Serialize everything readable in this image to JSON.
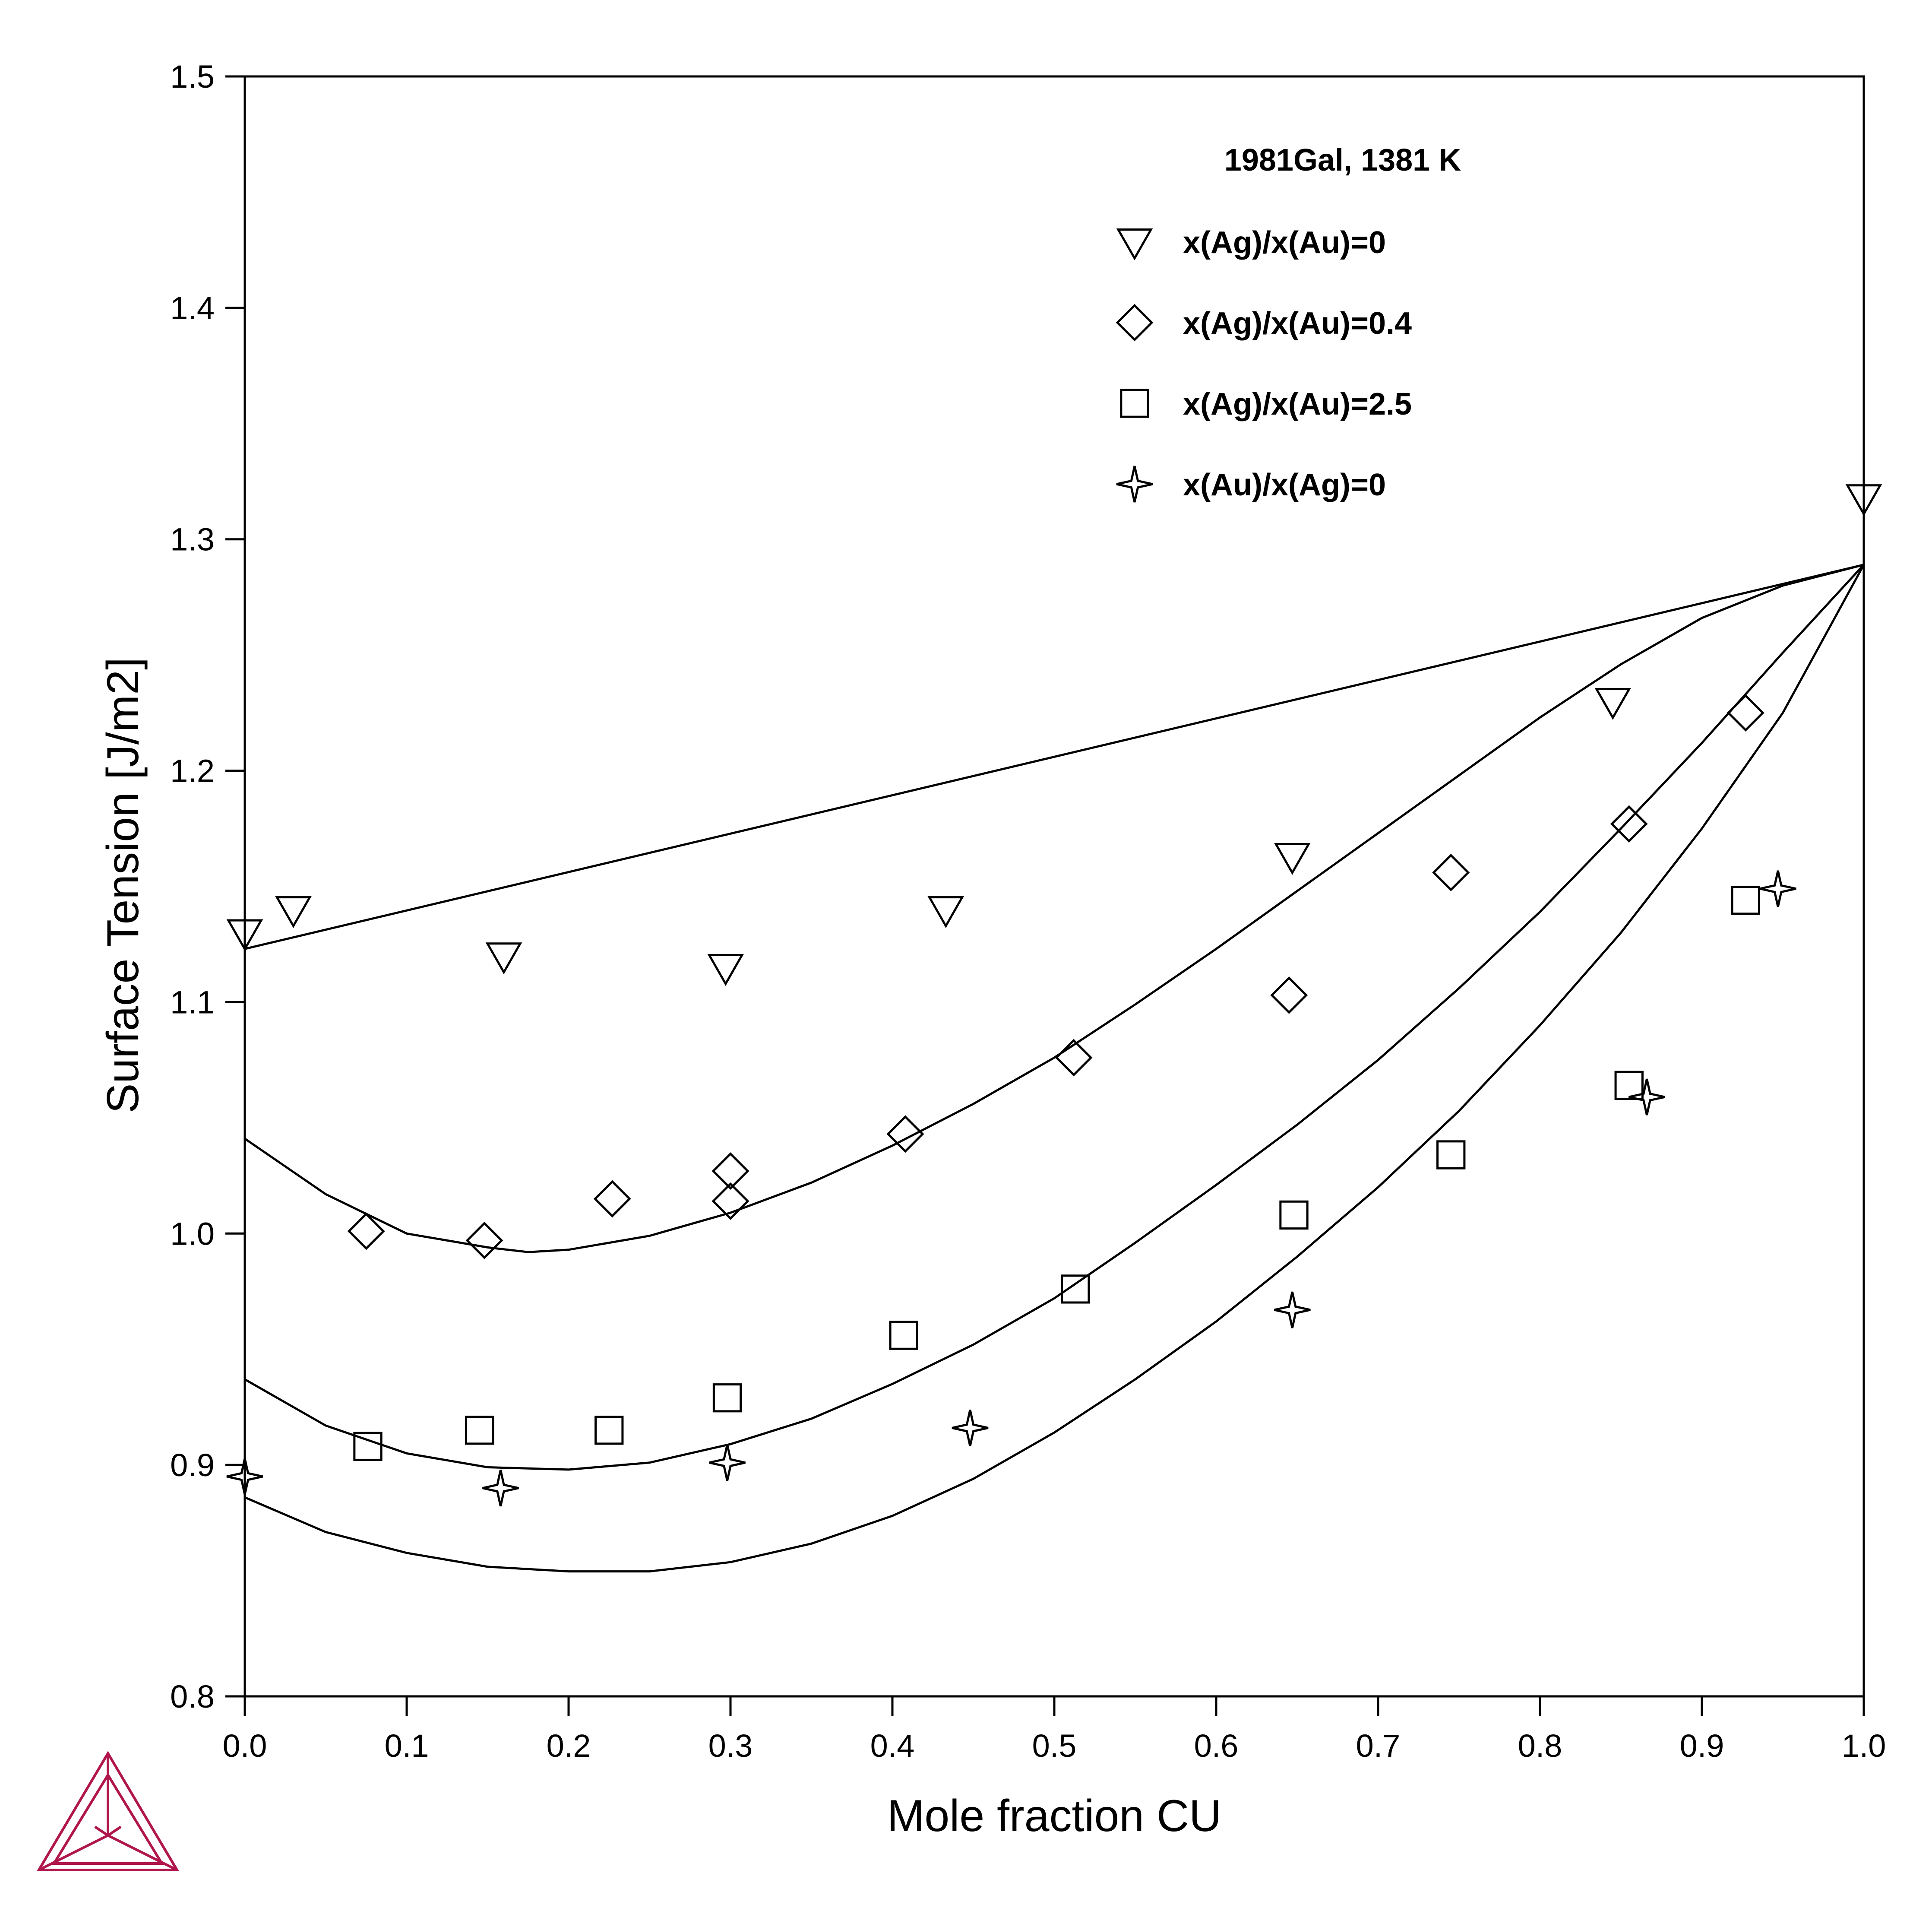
{
  "colors": {
    "logo": "#b0164b",
    "ink": "#000000",
    "background": "#ffffff"
  },
  "logo_icon": "thermo-calc-triangle-logo",
  "chart_data": {
    "type": "scatter",
    "xlabel": "Mole fraction CU",
    "ylabel": "Surface Tension [J/m2]",
    "xlim": [
      0.0,
      1.0
    ],
    "ylim": [
      0.8,
      1.5
    ],
    "xticks": [
      "0.0",
      "0.1",
      "0.2",
      "0.3",
      "0.4",
      "0.5",
      "0.6",
      "0.7",
      "0.8",
      "0.9",
      "1.0"
    ],
    "yticks": [
      "0.8",
      "0.9",
      "1.0",
      "1.1",
      "1.2",
      "1.3",
      "1.4",
      "1.5"
    ],
    "grid": false,
    "legend_position": "top-right",
    "legend_title": "1981Gal, 1381 K",
    "series": [
      {
        "name": "x(Ag)/x(Au)=0",
        "marker": "triangle-down",
        "points": [
          [
            0.0,
            1.13
          ],
          [
            0.03,
            1.14
          ],
          [
            0.16,
            1.12
          ],
          [
            0.297,
            1.115
          ],
          [
            0.433,
            1.14
          ],
          [
            0.647,
            1.163
          ],
          [
            0.845,
            1.23
          ],
          [
            1.0,
            1.318
          ]
        ]
      },
      {
        "name": "x(Ag)/x(Au)=0.4",
        "marker": "diamond",
        "points": [
          [
            0.075,
            1.001
          ],
          [
            0.148,
            0.997
          ],
          [
            0.227,
            1.015
          ],
          [
            0.3,
            1.014
          ],
          [
            0.3,
            1.027
          ],
          [
            0.408,
            1.043
          ],
          [
            0.512,
            1.076
          ],
          [
            0.645,
            1.103
          ],
          [
            0.745,
            1.156
          ],
          [
            0.855,
            1.177
          ],
          [
            0.927,
            1.225
          ]
        ]
      },
      {
        "name": "x(Ag)/x(Au)=2.5",
        "marker": "square",
        "points": [
          [
            0.076,
            0.908
          ],
          [
            0.145,
            0.915
          ],
          [
            0.225,
            0.915
          ],
          [
            0.298,
            0.929
          ],
          [
            0.407,
            0.956
          ],
          [
            0.513,
            0.976
          ],
          [
            0.648,
            1.008
          ],
          [
            0.745,
            1.034
          ],
          [
            0.855,
            1.064
          ],
          [
            0.927,
            1.144
          ]
        ]
      },
      {
        "name": "x(Au)/x(Ag)=0",
        "marker": "star4",
        "points": [
          [
            0.0,
            0.895
          ],
          [
            0.158,
            0.89
          ],
          [
            0.298,
            0.901
          ],
          [
            0.448,
            0.916
          ],
          [
            0.647,
            0.967
          ],
          [
            0.866,
            1.059
          ],
          [
            0.947,
            1.149
          ]
        ]
      }
    ],
    "lines": [
      {
        "x": [
          0.0,
          1.0
        ],
        "y": [
          1.123,
          1.289
        ]
      },
      {
        "x": [
          0.0,
          0.05,
          0.1,
          0.15,
          0.175,
          0.2,
          0.25,
          0.3,
          0.35,
          0.4,
          0.45,
          0.5,
          0.55,
          0.6,
          0.65,
          0.7,
          0.75,
          0.8,
          0.85,
          0.9,
          0.95,
          1.0
        ],
        "y": [
          1.041,
          1.017,
          1.0,
          0.994,
          0.992,
          0.993,
          0.999,
          1.009,
          1.022,
          1.038,
          1.056,
          1.076,
          1.099,
          1.123,
          1.148,
          1.173,
          1.198,
          1.223,
          1.246,
          1.266,
          1.28,
          1.289
        ]
      },
      {
        "x": [
          0.0,
          0.05,
          0.1,
          0.15,
          0.2,
          0.25,
          0.3,
          0.35,
          0.4,
          0.45,
          0.5,
          0.55,
          0.6,
          0.65,
          0.7,
          0.75,
          0.8,
          0.85,
          0.9,
          0.95,
          1.0
        ],
        "y": [
          0.937,
          0.917,
          0.905,
          0.899,
          0.898,
          0.901,
          0.909,
          0.92,
          0.935,
          0.952,
          0.972,
          0.996,
          1.021,
          1.047,
          1.075,
          1.106,
          1.139,
          1.175,
          1.212,
          1.251,
          1.289
        ]
      },
      {
        "x": [
          0.0,
          0.05,
          0.1,
          0.15,
          0.2,
          0.25,
          0.3,
          0.35,
          0.4,
          0.45,
          0.5,
          0.55,
          0.6,
          0.65,
          0.7,
          0.75,
          0.8,
          0.85,
          0.9,
          0.95,
          1.0
        ],
        "y": [
          0.886,
          0.871,
          0.862,
          0.856,
          0.854,
          0.854,
          0.858,
          0.866,
          0.878,
          0.894,
          0.914,
          0.937,
          0.962,
          0.99,
          1.02,
          1.053,
          1.09,
          1.13,
          1.175,
          1.225,
          1.289
        ]
      }
    ]
  }
}
